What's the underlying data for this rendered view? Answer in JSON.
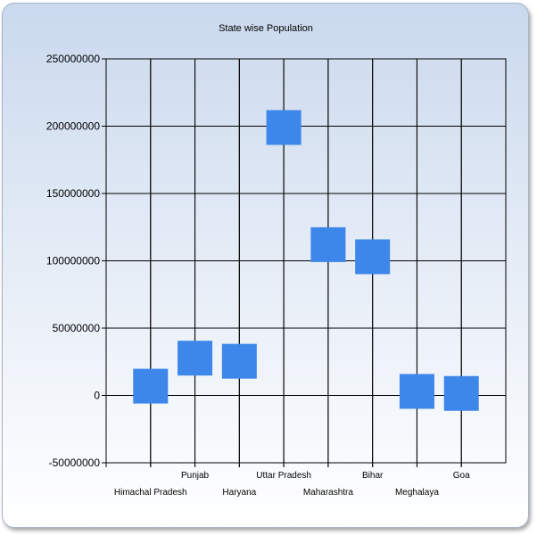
{
  "chart_data": {
    "type": "scatter",
    "title": "State wise Population",
    "xlabel": "",
    "ylabel": "",
    "categories": [
      "Himachal Pradesh",
      "Punjab",
      "Haryana",
      "Uttar Pradesh",
      "Maharashtra",
      "Bihar",
      "Meghalaya",
      "Goa"
    ],
    "values": [
      6900000,
      27700000,
      25400000,
      199000000,
      112000000,
      103000000,
      3000000,
      1500000
    ],
    "ylim": [
      -50000000,
      250000000
    ],
    "yticks": [
      "250000000",
      "200000000",
      "150000000",
      "100000000",
      "50000000",
      "0",
      "-50000000"
    ],
    "ytick_values": [
      250000000,
      200000000,
      150000000,
      100000000,
      50000000,
      0,
      -50000000
    ],
    "marker": "square",
    "color": "#3d86ea",
    "grid": true,
    "legend": "none"
  }
}
